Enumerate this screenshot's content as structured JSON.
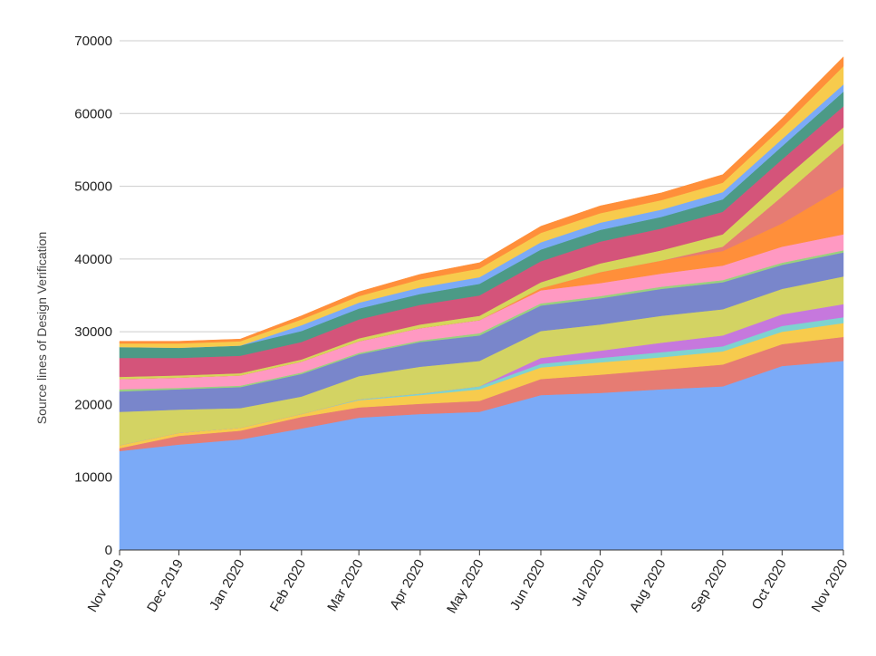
{
  "chart_data": {
    "type": "area",
    "stacked": true,
    "title": "",
    "xlabel": "",
    "ylabel": "Source lines of Design Verification",
    "ylim": [
      0,
      70000
    ],
    "xlim": [
      "2019-11-01",
      "2020-11-01"
    ],
    "yticks": [
      "0",
      "10000",
      "20000",
      "30000",
      "40000",
      "50000",
      "60000",
      "70000"
    ],
    "xticks": [
      {
        "date": "2019-11-01",
        "label": "Nov 2019"
      },
      {
        "date": "2019-12-01",
        "label": "Dec 2019"
      },
      {
        "date": "2020-01-01",
        "label": "Jan 2020"
      },
      {
        "date": "2020-02-01",
        "label": "Feb 2020"
      },
      {
        "date": "2020-03-01",
        "label": "Mar 2020"
      },
      {
        "date": "2020-04-01",
        "label": "Apr 2020"
      },
      {
        "date": "2020-05-01",
        "label": "May 2020"
      },
      {
        "date": "2020-06-01",
        "label": "Jun 2020"
      },
      {
        "date": "2020-07-01",
        "label": "Jul 2020"
      },
      {
        "date": "2020-08-01",
        "label": "Aug 2020"
      },
      {
        "date": "2020-09-01",
        "label": "Sep 2020"
      },
      {
        "date": "2020-10-01",
        "label": "Oct 2020"
      },
      {
        "date": "2020-11-01",
        "label": "Nov 2020"
      }
    ],
    "grid": true,
    "legend": "none",
    "x": [
      "2019-11-01",
      "2019-12-01",
      "2020-01-01",
      "2020-02-01",
      "2020-03-01",
      "2020-04-01",
      "2020-05-01",
      "2020-06-01",
      "2020-07-01",
      "2020-08-01",
      "2020-09-01",
      "2020-10-01",
      "2020-11-01"
    ],
    "series": [
      {
        "color": "#7baaf7",
        "values": [
          13600,
          14500,
          15200,
          16700,
          18200,
          18700,
          19000,
          21300,
          21600,
          22100,
          22500,
          25300,
          26000
        ]
      },
      {
        "color": "#e67c73",
        "values": [
          400,
          1200,
          1200,
          1600,
          1400,
          1400,
          1500,
          2200,
          2500,
          2700,
          3000,
          3000,
          3300
        ]
      },
      {
        "color": "#f7cb4d",
        "values": [
          400,
          400,
          400,
          400,
          1000,
          1200,
          1600,
          1600,
          1700,
          1700,
          1800,
          1700,
          1900
        ]
      },
      {
        "color": "#7ed3d0",
        "values": [
          0,
          0,
          0,
          0,
          100,
          200,
          400,
          500,
          600,
          700,
          700,
          800,
          800
        ]
      },
      {
        "color": "#c678dd",
        "values": [
          0,
          0,
          0,
          0,
          0,
          0,
          0,
          800,
          1000,
          1300,
          1500,
          1600,
          1800
        ]
      },
      {
        "color": "#d3d363",
        "values": [
          4600,
          3200,
          2700,
          2400,
          3200,
          3700,
          3500,
          3700,
          3600,
          3700,
          3600,
          3500,
          3800
        ]
      },
      {
        "color": "#7986cb",
        "values": [
          2800,
          2800,
          2900,
          3100,
          3000,
          3400,
          3500,
          3500,
          3600,
          3700,
          3700,
          3300,
          3300
        ]
      },
      {
        "color": "#9ad07f",
        "values": [
          300,
          200,
          200,
          200,
          200,
          200,
          300,
          300,
          300,
          300,
          300,
          300,
          300
        ]
      },
      {
        "color": "#ff99c2",
        "values": [
          1400,
          1400,
          1400,
          1500,
          1600,
          1700,
          1800,
          1800,
          1800,
          1800,
          2000,
          2200,
          2200
        ]
      },
      {
        "color": "#ff8f3a",
        "values": [
          0,
          0,
          0,
          0,
          0,
          0,
          0,
          300,
          1500,
          1800,
          2000,
          3200,
          6500
        ]
      },
      {
        "color": "#e67c73",
        "values": [
          0,
          0,
          0,
          0,
          0,
          0,
          0,
          0,
          0,
          0,
          600,
          3700,
          6000
        ]
      },
      {
        "color": "#d6d65a",
        "values": [
          300,
          300,
          300,
          300,
          400,
          500,
          600,
          800,
          1200,
          1400,
          1700,
          2200,
          2200
        ]
      },
      {
        "color": "#d4547a",
        "values": [
          2600,
          2400,
          2400,
          2400,
          2600,
          2700,
          2800,
          2900,
          3000,
          3000,
          3100,
          2900,
          2900
        ]
      },
      {
        "color": "#4c9a86",
        "values": [
          1500,
          1400,
          1400,
          1500,
          1500,
          1500,
          1600,
          1600,
          1600,
          1600,
          1700,
          1800,
          2000
        ]
      },
      {
        "color": "#7baaf7",
        "values": [
          0,
          0,
          0,
          800,
          800,
          900,
          900,
          1000,
          1000,
          1000,
          1000,
          1000,
          1000
        ]
      },
      {
        "color": "#f7cb4d",
        "values": [
          500,
          600,
          600,
          800,
          900,
          1100,
          1200,
          1300,
          1300,
          1300,
          1300,
          1600,
          2500
        ]
      },
      {
        "color": "#ff8f3a",
        "values": [
          300,
          300,
          300,
          500,
          600,
          700,
          800,
          900,
          1000,
          1000,
          1100,
          1200,
          1300
        ]
      }
    ]
  }
}
